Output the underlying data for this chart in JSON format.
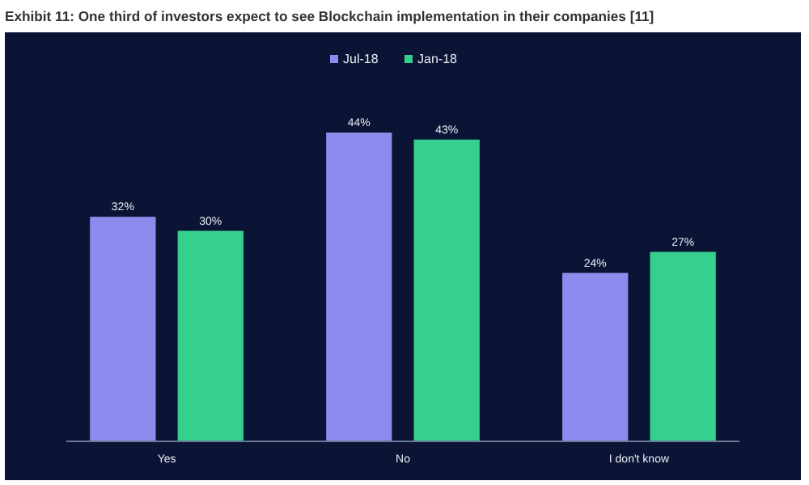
{
  "chart_data": {
    "type": "bar",
    "title": "Exhibit 11: One third of investors expect to see Blockchain implementation in their companies [11]",
    "categories": [
      "Yes",
      "No",
      "I don't know"
    ],
    "series": [
      {
        "name": "Jul-18",
        "color": "#8b8ced",
        "values": [
          32,
          44,
          24
        ],
        "value_labels": [
          "32%",
          "44%",
          "24%"
        ]
      },
      {
        "name": "Jan-18",
        "color": "#35cf8e",
        "values": [
          30,
          43,
          27
        ],
        "value_labels": [
          "30%",
          "43%",
          "27%"
        ]
      }
    ],
    "legend": "top"
  }
}
